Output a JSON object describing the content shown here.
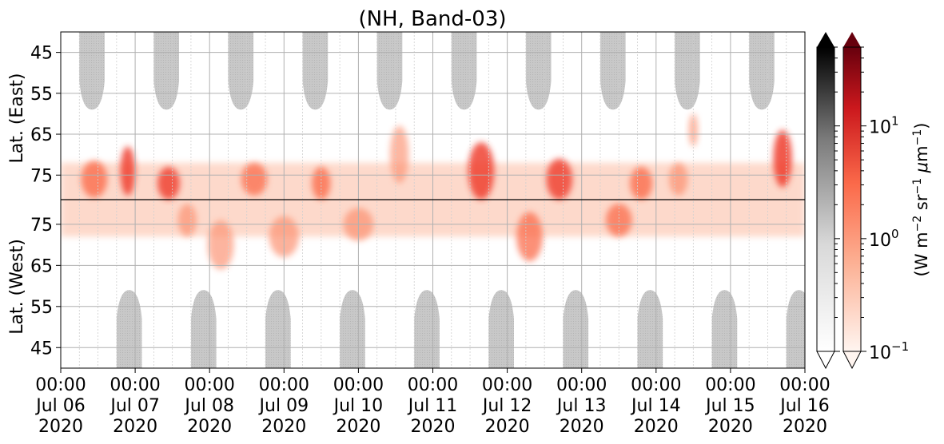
{
  "chart_data": {
    "type": "heatmap",
    "title": "(NH, Band-03)",
    "ylabel_upper": "Lat. (East)",
    "ylabel_lower": "Lat. (West)",
    "y_ticks_upper": [
      "45",
      "55",
      "65",
      "75"
    ],
    "y_ticks_lower": [
      "75",
      "65",
      "55",
      "45"
    ],
    "x_ticks": [
      {
        "time": "00:00",
        "date": "Jul 06",
        "year": "2020"
      },
      {
        "time": "00:00",
        "date": "Jul 07",
        "year": "2020"
      },
      {
        "time": "00:00",
        "date": "Jul 08",
        "year": "2020"
      },
      {
        "time": "00:00",
        "date": "Jul 09",
        "year": "2020"
      },
      {
        "time": "00:00",
        "date": "Jul 10",
        "year": "2020"
      },
      {
        "time": "00:00",
        "date": "Jul 11",
        "year": "2020"
      },
      {
        "time": "00:00",
        "date": "Jul 12",
        "year": "2020"
      },
      {
        "time": "00:00",
        "date": "Jul 13",
        "year": "2020"
      },
      {
        "time": "00:00",
        "date": "Jul 14",
        "year": "2020"
      },
      {
        "time": "00:00",
        "date": "Jul 15",
        "year": "2020"
      },
      {
        "time": "00:00",
        "date": "Jul 16",
        "year": "2020"
      }
    ],
    "x_range_days": [
      0,
      10
    ],
    "grid": true,
    "colorbar": {
      "label": "(W m$^{-2}$ sr$^{-1}$ μm$^{-1}$)",
      "scale": "log",
      "range": [
        0.1,
        50
      ],
      "tick_labels": [
        {
          "base": "10",
          "exp": "−1",
          "value": 0.1
        },
        {
          "base": "10",
          "exp": "0",
          "value": 1
        },
        {
          "base": "10",
          "exp": "1",
          "value": 10
        }
      ],
      "colormaps": [
        "Greys",
        "Reds"
      ],
      "extend": "both"
    },
    "night_masks_east": [
      0.42,
      1.42,
      2.42,
      3.42,
      4.42,
      5.42,
      6.42,
      7.42,
      8.42,
      9.42
    ],
    "night_masks_west": [
      0.92,
      1.92,
      2.92,
      3.92,
      4.92,
      5.92,
      6.92,
      7.92,
      8.92,
      9.92
    ],
    "emission_blobs": [
      {
        "day": 0.45,
        "lat_east": 76,
        "width": 0.35,
        "height": 9,
        "intensity": 0.7
      },
      {
        "day": 0.9,
        "lat_east": 74,
        "width": 0.2,
        "height": 12,
        "intensity": 0.8
      },
      {
        "day": 1.45,
        "lat_east": 77,
        "width": 0.3,
        "height": 8,
        "intensity": 0.75
      },
      {
        "day": 1.7,
        "lat_west": 76,
        "width": 0.25,
        "height": 8,
        "intensity": 0.5
      },
      {
        "day": 2.15,
        "lat_west": 70,
        "width": 0.35,
        "height": 12,
        "intensity": 0.45
      },
      {
        "day": 2.6,
        "lat_east": 76,
        "width": 0.35,
        "height": 8,
        "intensity": 0.6
      },
      {
        "day": 3.0,
        "lat_west": 72,
        "width": 0.4,
        "height": 10,
        "intensity": 0.5
      },
      {
        "day": 3.5,
        "lat_east": 77,
        "width": 0.25,
        "height": 8,
        "intensity": 0.7
      },
      {
        "day": 4.0,
        "lat_west": 75,
        "width": 0.4,
        "height": 8,
        "intensity": 0.55
      },
      {
        "day": 4.55,
        "lat_east": 70,
        "width": 0.25,
        "height": 14,
        "intensity": 0.4
      },
      {
        "day": 5.65,
        "lat_east": 74,
        "width": 0.35,
        "height": 14,
        "intensity": 0.8
      },
      {
        "day": 6.3,
        "lat_west": 72,
        "width": 0.35,
        "height": 12,
        "intensity": 0.6
      },
      {
        "day": 6.7,
        "lat_east": 76,
        "width": 0.35,
        "height": 10,
        "intensity": 0.75
      },
      {
        "day": 7.5,
        "lat_west": 76,
        "width": 0.35,
        "height": 8,
        "intensity": 0.6
      },
      {
        "day": 7.8,
        "lat_east": 77,
        "width": 0.3,
        "height": 8,
        "intensity": 0.7
      },
      {
        "day": 8.3,
        "lat_east": 76,
        "width": 0.25,
        "height": 8,
        "intensity": 0.55
      },
      {
        "day": 8.5,
        "lat_east": 64,
        "width": 0.12,
        "height": 8,
        "intensity": 0.45
      },
      {
        "day": 9.7,
        "lat_east": 71,
        "width": 0.25,
        "height": 14,
        "intensity": 0.85
      }
    ]
  }
}
